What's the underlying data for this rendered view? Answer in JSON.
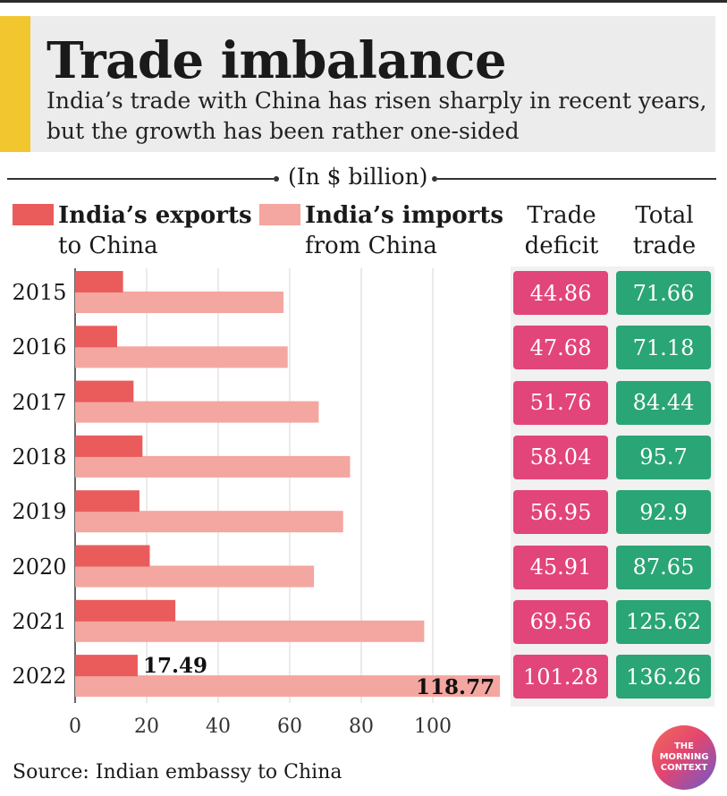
{
  "header": {
    "title": "Trade imbalance",
    "subtitle": "India’s trade with China has risen sharply in recent years, but the growth has been rather one-sided"
  },
  "unit_label": "(In $ billion)",
  "legend": {
    "exports_bold": "India’s exports",
    "exports_rest": "to China",
    "imports_bold": "India’s imports",
    "imports_rest": "from China"
  },
  "columns": {
    "deficit_line1": "Trade",
    "deficit_line2": "deficit",
    "total_line1": "Total",
    "total_line2": "trade"
  },
  "colors": {
    "exports": "#ea5c5c",
    "imports": "#f4a6a0",
    "deficit": "#e2457a",
    "total": "#2aa575",
    "accent": "#f2c62e"
  },
  "chart_data": {
    "type": "bar",
    "orientation": "horizontal",
    "categories": [
      "2015",
      "2016",
      "2017",
      "2018",
      "2019",
      "2020",
      "2021",
      "2022"
    ],
    "series": [
      {
        "name": "India’s exports to China",
        "values": [
          13.4,
          11.75,
          16.34,
          18.83,
          17.98,
          20.87,
          28.03,
          17.49
        ]
      },
      {
        "name": "India’s imports from China",
        "values": [
          58.26,
          59.43,
          68.1,
          76.87,
          74.93,
          66.78,
          97.59,
          118.77
        ]
      }
    ],
    "value_labels": {
      "exports_2022": "17.49",
      "imports_2022": "118.77"
    },
    "xlim": [
      0,
      120
    ],
    "x_ticks": [
      "0",
      "20",
      "40",
      "60",
      "80",
      "100"
    ],
    "grid": true,
    "table": {
      "trade_deficit": [
        "44.86",
        "47.68",
        "51.76",
        "58.04",
        "56.95",
        "45.91",
        "69.56",
        "101.28"
      ],
      "total_trade": [
        "71.66",
        "71.18",
        "84.44",
        "95.7",
        "92.9",
        "87.65",
        "125.62",
        "136.26"
      ]
    }
  },
  "source": "Source: Indian embassy to China",
  "logo": {
    "line1": "THE",
    "line2": "MORNING",
    "line3": "CONTEXT"
  }
}
